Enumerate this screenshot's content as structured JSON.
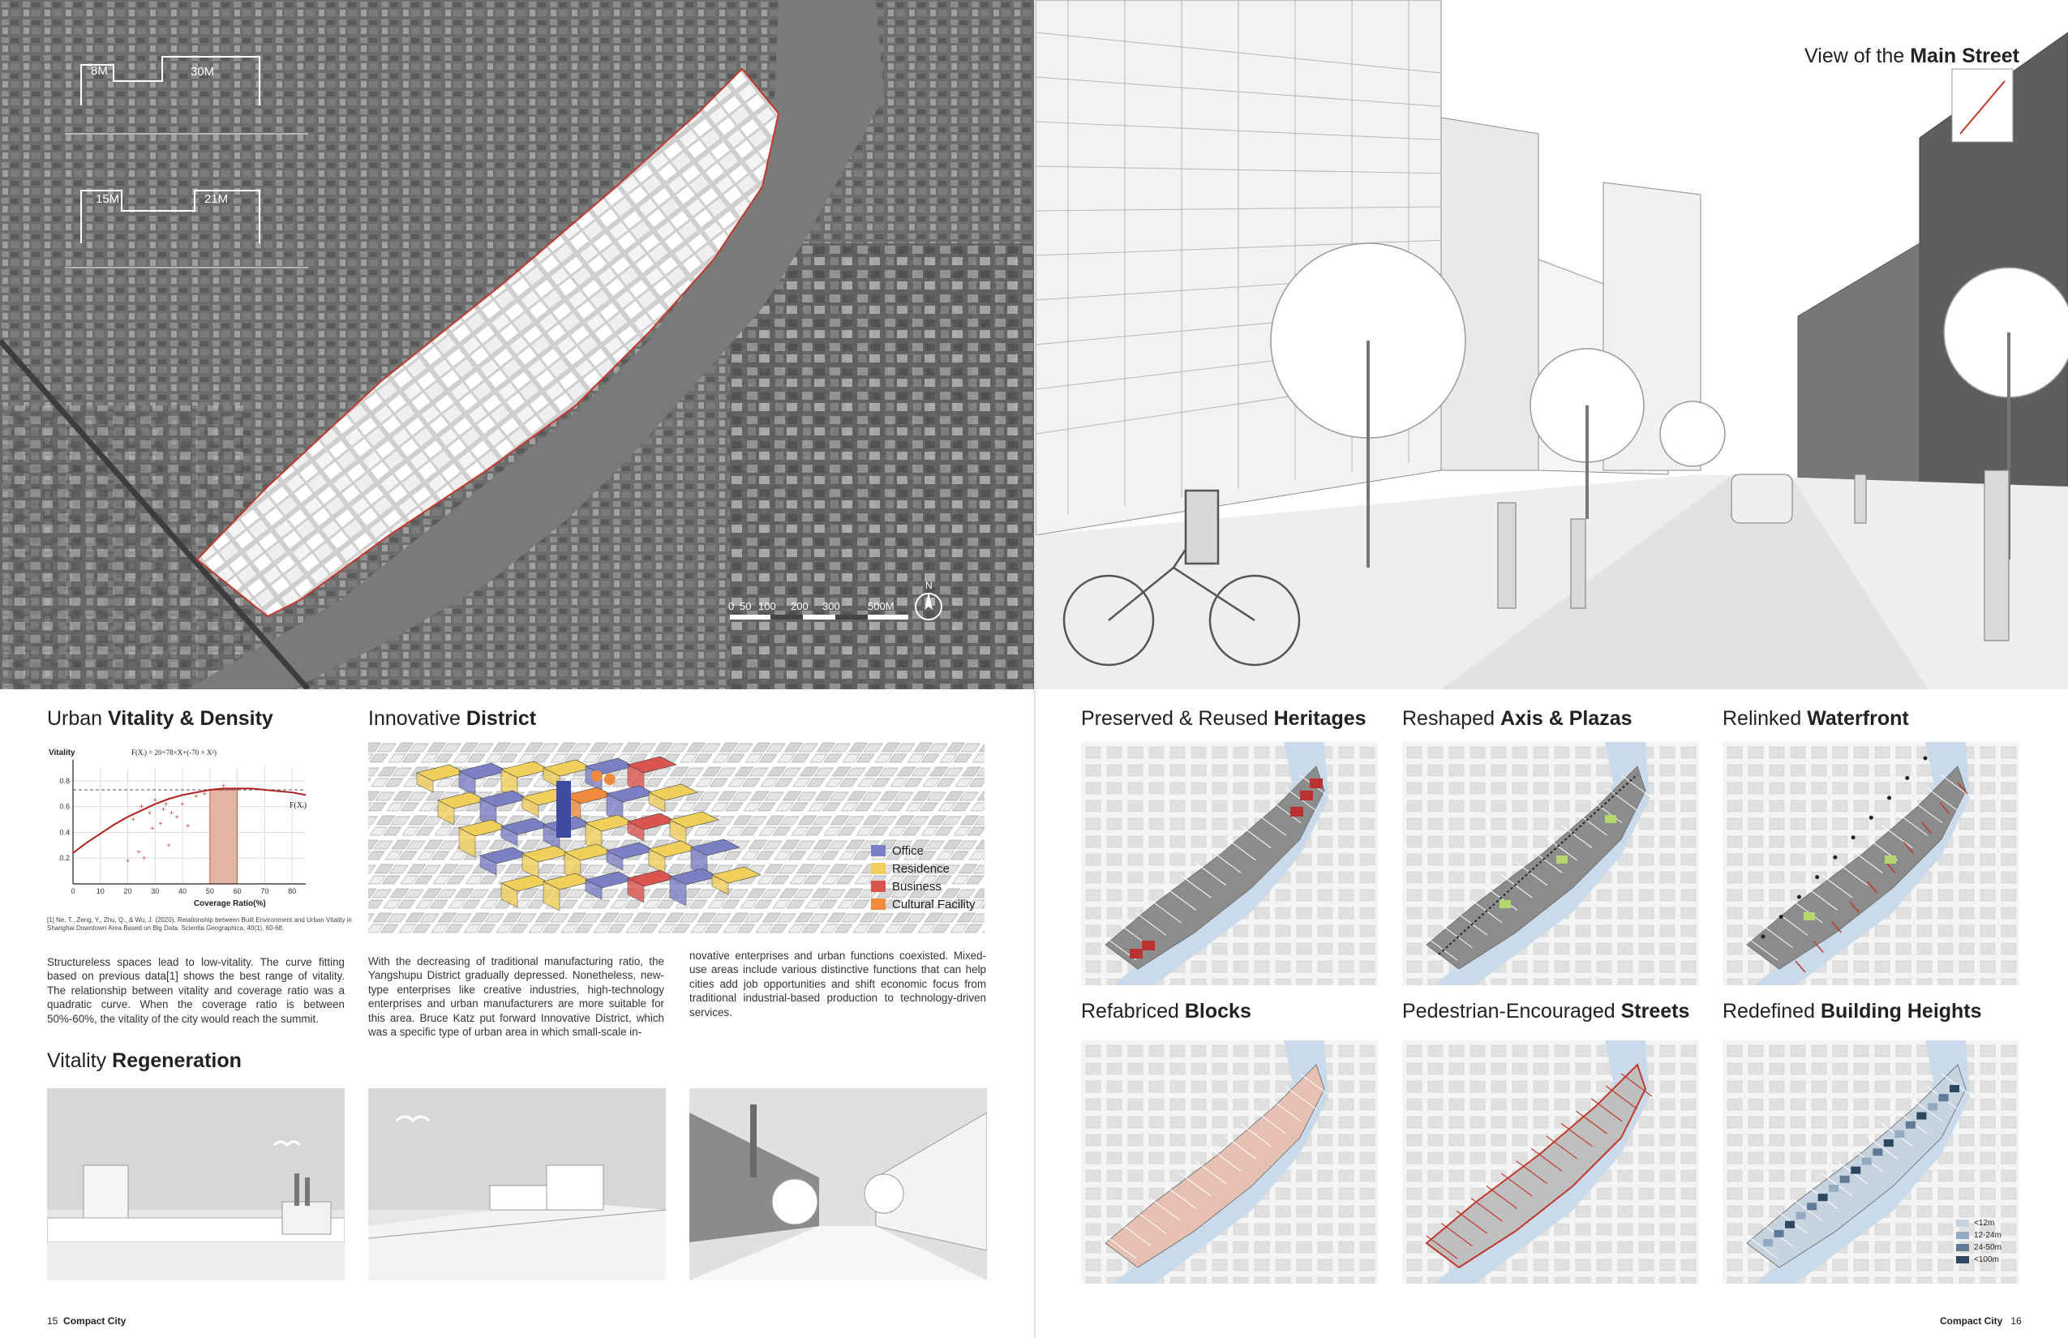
{
  "left_page": {
    "number": "15",
    "running_title": "Compact City",
    "aerial": {
      "dimension_labels": [
        "8M",
        "30M",
        "15M",
        "21M"
      ],
      "scale_bar": [
        "0",
        "50",
        "100",
        "200",
        "300",
        "500M"
      ],
      "north_label": "N"
    },
    "vitality_density": {
      "heading_light": "Urban ",
      "heading_bold": "Vitality & Density",
      "chart_formula": "F(Xᵢ) = 20+78×X+(-70 × X²)",
      "chart_curve_label": "F(Xᵢ)",
      "reference": "[1] Ne, T., Zeng, Y., Zhu, Q., & Wu, J. (2020). Relationship between Built Environment and Urban Vitality in Shanghai Downtown Area Based on Big Data. Scientia Geographica, 40(1), 60-68.",
      "text": "Structureless spaces lead to low-vitality. The curve fitting based on previous data[1] shows the best range of vitality. The relationship between vitality and coverage ratio was a quadratic curve. When the coverage ratio is between 50%-60%, the vitality of the city would reach the summit."
    },
    "innovative_district": {
      "heading_light": "Innovative ",
      "heading_bold": "District",
      "legend": [
        {
          "label": "Office",
          "color": "#7b7fc4"
        },
        {
          "label": "Residence",
          "color": "#f0cf5a"
        },
        {
          "label": "Business",
          "color": "#d9534f"
        },
        {
          "label": "Cultural Facility",
          "color": "#f08a3c"
        }
      ],
      "text_col1": "With the decreasing of traditional manufacturing ratio, the Yangshupu District gradually depressed. Nonetheless, new-type enterprises like creative industries, high-technology enterprises and urban manufacturers are more suitable for this area. Bruce Katz put forward Innovative District, which was a specific type of urban area in which small-scale in-",
      "text_col2": "novative enterprises and urban functions coexisted. Mixed-use areas include various distinctive functions that can help cities add job opportunities and shift economic focus from traditional industrial-based production to technology-driven services."
    },
    "vitality_regeneration": {
      "heading_light": "Vitality ",
      "heading_bold": "Regeneration"
    }
  },
  "right_page": {
    "number": "16",
    "running_title": "Compact City",
    "main_street": {
      "heading_light": "View of the ",
      "heading_bold": "Main Street"
    },
    "maps": [
      {
        "light": "Preserved & Reused ",
        "bold": "Heritages"
      },
      {
        "light": "Reshaped ",
        "bold": "Axis & Plazas"
      },
      {
        "light": "Relinked ",
        "bold": "Waterfront"
      },
      {
        "light": "Refabriced ",
        "bold": "Blocks"
      },
      {
        "light": "Pedestrian-Encouraged ",
        "bold": "Streets"
      },
      {
        "light": "Redefined ",
        "bold": "Building Heights"
      }
    ],
    "height_legend": [
      {
        "label": "<12m",
        "color": "#c7d3de"
      },
      {
        "label": "12-24m",
        "color": "#94aac0"
      },
      {
        "label": "24-50m",
        "color": "#5e7a96"
      },
      {
        "label": "<100m",
        "color": "#2e4760"
      }
    ]
  },
  "chart_data": {
    "type": "scatter",
    "title": "",
    "xlabel": "Coverage Ratio(%)",
    "ylabel": "Vitality",
    "xlim": [
      0,
      85
    ],
    "ylim": [
      0,
      0.9
    ],
    "x_ticks": [
      0,
      10,
      20,
      30,
      40,
      50,
      60,
      70,
      80
    ],
    "y_ticks": [
      0.2,
      0.4,
      0.6,
      0.8
    ],
    "highlight_band": [
      50,
      60
    ],
    "curve": {
      "x": [
        0,
        5,
        10,
        15,
        20,
        25,
        30,
        35,
        40,
        45,
        50,
        55,
        60,
        65,
        70,
        75,
        80,
        85
      ],
      "y": [
        0.24,
        0.32,
        0.39,
        0.46,
        0.52,
        0.57,
        0.62,
        0.66,
        0.69,
        0.71,
        0.73,
        0.74,
        0.74,
        0.74,
        0.73,
        0.72,
        0.71,
        0.69
      ]
    },
    "points": {
      "x": [
        20,
        22,
        25,
        26,
        28,
        30,
        32,
        33,
        35,
        36,
        38,
        40,
        42,
        45,
        48,
        55,
        24,
        29,
        34
      ],
      "y": [
        0.18,
        0.5,
        0.6,
        0.2,
        0.55,
        0.65,
        0.47,
        0.58,
        0.3,
        0.55,
        0.52,
        0.62,
        0.45,
        0.68,
        0.7,
        0.76,
        0.25,
        0.43,
        0.62
      ]
    },
    "dashed_level": 0.73
  }
}
